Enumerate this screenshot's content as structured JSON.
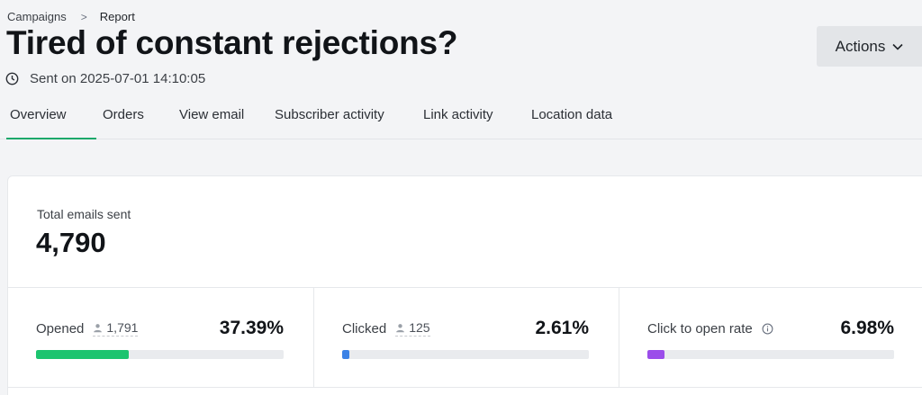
{
  "breadcrumb": {
    "parent": "Campaigns",
    "separator": ">",
    "current": "Report"
  },
  "header": {
    "title": "Tired of constant rejections?",
    "sent": "Sent on 2025-07-01 14:10:05",
    "actions_label": "Actions"
  },
  "tabs": [
    {
      "label": "Overview",
      "active": true
    },
    {
      "label": "Orders"
    },
    {
      "label": "View email"
    },
    {
      "label": "Subscriber activity"
    },
    {
      "label": "Link activity"
    },
    {
      "label": "Location data"
    }
  ],
  "summary": {
    "total_label": "Total emails sent",
    "total_value": "4,790"
  },
  "stats": [
    {
      "label": "Opened",
      "count": "1,791",
      "percent": "37.39%",
      "fraction": 0.3739,
      "color": "#1cc46f"
    },
    {
      "label": "Clicked",
      "count": "125",
      "percent": "2.61%",
      "fraction": 0.0261,
      "color": "#3b82e6"
    },
    {
      "label": "Click to open rate",
      "percent": "6.98%",
      "fraction": 0.0698,
      "color": "#9b4dea"
    }
  ],
  "icons": {
    "clock": "clock-icon",
    "chevron": "chevron-down-icon",
    "person": "person-icon",
    "info": "info-icon"
  }
}
